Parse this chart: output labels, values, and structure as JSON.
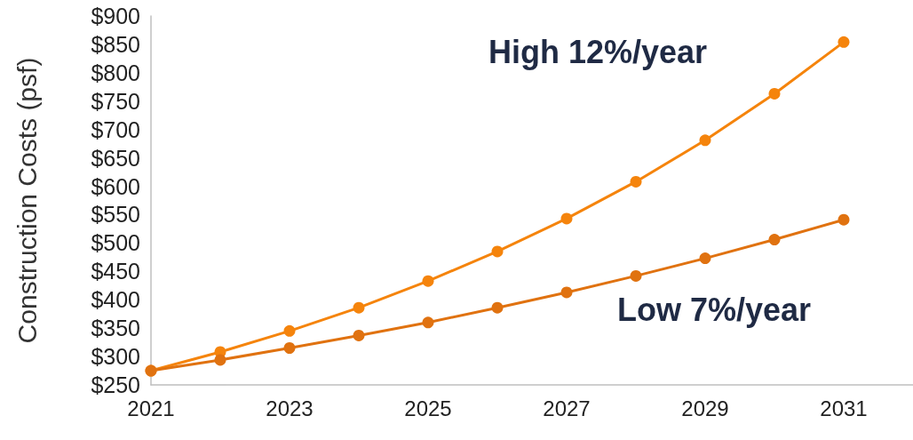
{
  "chart_data": {
    "type": "line",
    "ylabel": "Construction Costs (psf)",
    "x": [
      2021,
      2022,
      2023,
      2024,
      2025,
      2026,
      2027,
      2028,
      2029,
      2030,
      2031
    ],
    "series": [
      {
        "color": "#f5840c",
        "values": [
          275,
          308,
          345,
          386,
          433,
          485,
          543,
          608,
          681,
          763,
          854
        ]
      },
      {
        "color": "#e07210",
        "values": [
          275,
          294,
          315,
          337,
          360,
          386,
          413,
          442,
          473,
          506,
          541
        ]
      }
    ],
    "annotations": [
      "High 12%/year",
      "Low 7%/year"
    ],
    "xlim": [
      2021,
      2032
    ],
    "xticks": [
      2021,
      2023,
      2025,
      2027,
      2029,
      2031
    ],
    "ylim": [
      250,
      900
    ],
    "yticks": [
      {
        "value": 250,
        "label": "$250"
      },
      {
        "value": 300,
        "label": "$300"
      },
      {
        "value": 350,
        "label": "$350"
      },
      {
        "value": 400,
        "label": "$400"
      },
      {
        "value": 450,
        "label": "$450"
      },
      {
        "value": 500,
        "label": "$500"
      },
      {
        "value": 550,
        "label": "$550"
      },
      {
        "value": 600,
        "label": "$600"
      },
      {
        "value": 650,
        "label": "$650"
      },
      {
        "value": 700,
        "label": "$700"
      },
      {
        "value": 750,
        "label": "$750"
      },
      {
        "value": 800,
        "label": "$800"
      },
      {
        "value": 850,
        "label": "$850"
      },
      {
        "value": 900,
        "label": "$900"
      }
    ],
    "grid": false,
    "marker": "circle",
    "line_style": "solid"
  }
}
